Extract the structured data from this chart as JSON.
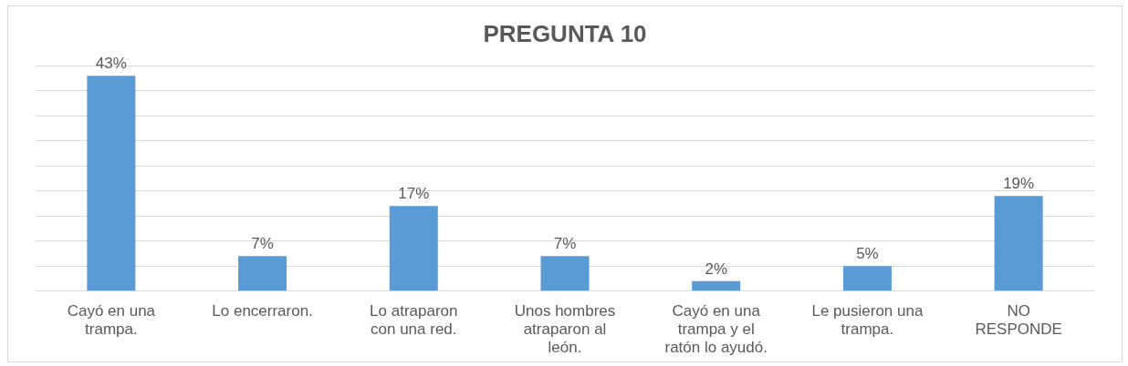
{
  "chart_data": {
    "type": "bar",
    "title": "PREGUNTA 10",
    "categories": [
      "Cayó en una trampa.",
      "Lo encerraron.",
      "Lo atraparon con una red.",
      "Unos hombres atraparon al león.",
      "Cayó en una trampa y el ratón lo ayudó.",
      "Le pusieron una trampa.",
      "NO RESPONDE"
    ],
    "values": [
      43,
      7,
      17,
      7,
      2,
      5,
      19
    ],
    "value_labels": [
      "43%",
      "7%",
      "17%",
      "7%",
      "2%",
      "5%",
      "19%"
    ],
    "color": "#5b9bd5",
    "ylim": [
      0,
      45
    ],
    "yticks": [
      0,
      5,
      10,
      15,
      20,
      25,
      30,
      35,
      40,
      45
    ],
    "grid": "y",
    "tick_labels": "x",
    "legend": false
  }
}
